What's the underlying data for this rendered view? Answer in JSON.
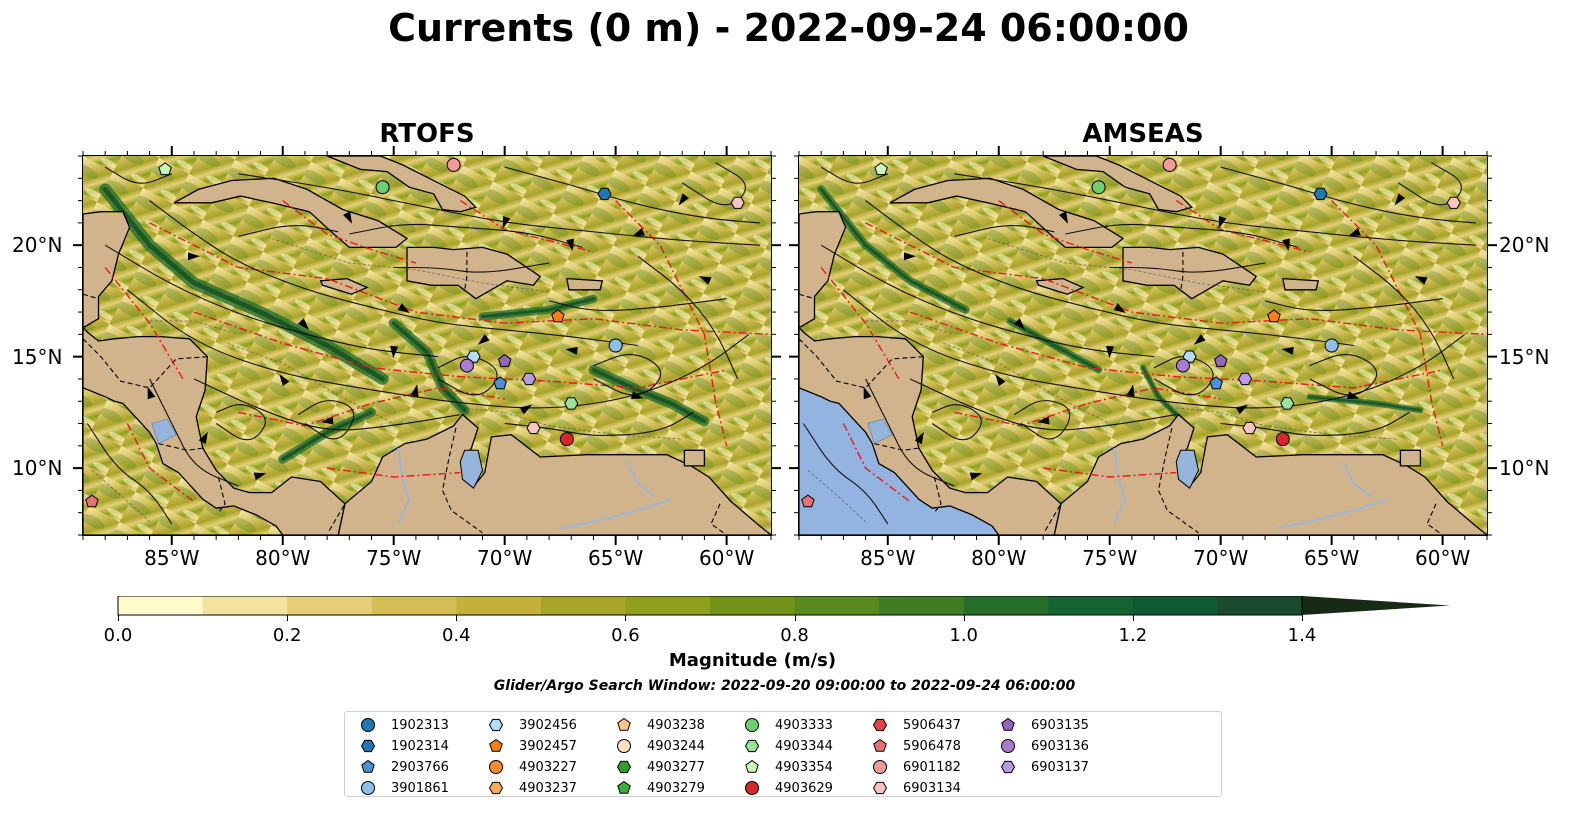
{
  "title": "Currents (0 m) - 2022-09-24 06:00:00",
  "panels": [
    {
      "title": "RTOFS"
    },
    {
      "title": "AMSEAS"
    }
  ],
  "x_ticks": [
    "85°W",
    "80°W",
    "75°W",
    "70°W",
    "65°W",
    "60°W"
  ],
  "y_ticks": [
    "20°N",
    "15°N",
    "10°N"
  ],
  "map_extent": {
    "lon": [
      -89,
      -58
    ],
    "lat": [
      7,
      24
    ]
  },
  "colorbar": {
    "label": "Magnitude (m/s)",
    "ticks": [
      "0.0",
      "0.2",
      "0.4",
      "0.6",
      "0.8",
      "1.0",
      "1.2",
      "1.4"
    ],
    "range": [
      0,
      1.5
    ],
    "extend": "max",
    "colors": [
      "#fffacc",
      "#f2e4a0",
      "#e4cf78",
      "#d6bd55",
      "#c4b13a",
      "#a8a42a",
      "#8fa01d",
      "#72921a",
      "#5a8a1f",
      "#3f7d24",
      "#256f2a",
      "#156330",
      "#0f5a30",
      "#1c4a2c",
      "#1f3a22",
      "#162a16"
    ]
  },
  "subtitle": "Glider/Argo Search Window: 2022-09-20 09:00:00 to 2022-09-24 06:00:00",
  "legend": [
    {
      "id": "1902313",
      "marker": "circle",
      "color": "#1f77b4"
    },
    {
      "id": "1902314",
      "marker": "hexagon",
      "color": "#1f77b4"
    },
    {
      "id": "2903766",
      "marker": "pentagon",
      "color": "#4a90d9"
    },
    {
      "id": "3901861",
      "marker": "circle",
      "color": "#8ec1ea"
    },
    {
      "id": "3902456",
      "marker": "hexagon",
      "color": "#b3dcf5"
    },
    {
      "id": "3902457",
      "marker": "pentagon",
      "color": "#ff7f0e"
    },
    {
      "id": "4903227",
      "marker": "circle",
      "color": "#ff8c2a"
    },
    {
      "id": "4903237",
      "marker": "hexagon",
      "color": "#ffaa5a"
    },
    {
      "id": "4903238",
      "marker": "pentagon",
      "color": "#ffc48a"
    },
    {
      "id": "4903244",
      "marker": "circle",
      "color": "#ffe0c0"
    },
    {
      "id": "4903277",
      "marker": "hexagon",
      "color": "#2ca02c"
    },
    {
      "id": "4903279",
      "marker": "pentagon",
      "color": "#3cb03c"
    },
    {
      "id": "4903333",
      "marker": "circle",
      "color": "#6fcf6f"
    },
    {
      "id": "4903344",
      "marker": "hexagon",
      "color": "#98e498"
    },
    {
      "id": "4903354",
      "marker": "pentagon",
      "color": "#c8f5c0"
    },
    {
      "id": "4903629",
      "marker": "circle",
      "color": "#d62728"
    },
    {
      "id": "5906437",
      "marker": "hexagon",
      "color": "#e04444"
    },
    {
      "id": "5906478",
      "marker": "pentagon",
      "color": "#e87070"
    },
    {
      "id": "6901182",
      "marker": "circle",
      "color": "#f29a9a"
    },
    {
      "id": "6903134",
      "marker": "hexagon",
      "color": "#f8c4c0"
    },
    {
      "id": "6903135",
      "marker": "pentagon",
      "color": "#9467bd"
    },
    {
      "id": "6903136",
      "marker": "circle",
      "color": "#a67dd0"
    },
    {
      "id": "6903137",
      "marker": "hexagon",
      "color": "#b89be0"
    }
  ],
  "floats": [
    {
      "id": "4903354",
      "lon": -85.3,
      "lat": 23.4
    },
    {
      "id": "4903333",
      "lon": -75.5,
      "lat": 22.6
    },
    {
      "id": "6901182",
      "lon": -72.3,
      "lat": 23.6
    },
    {
      "id": "1902314",
      "lon": -65.5,
      "lat": 22.3
    },
    {
      "id": "6903134",
      "lon": -59.5,
      "lat": 21.9
    },
    {
      "id": "3902457",
      "lon": -67.6,
      "lat": 16.8
    },
    {
      "id": "3901861",
      "lon": -65.0,
      "lat": 15.5
    },
    {
      "id": "3902456",
      "lon": -71.4,
      "lat": 15.0
    },
    {
      "id": "6903136",
      "lon": -71.7,
      "lat": 14.6
    },
    {
      "id": "6903135",
      "lon": -70.0,
      "lat": 14.8
    },
    {
      "id": "6903137",
      "lon": -68.9,
      "lat": 14.0
    },
    {
      "id": "2903766",
      "lon": -70.2,
      "lat": 13.8
    },
    {
      "id": "4903344",
      "lon": -67.0,
      "lat": 12.9
    },
    {
      "id": "6903134",
      "lon": -68.7,
      "lat": 11.8
    },
    {
      "id": "4903629",
      "lon": -67.2,
      "lat": 11.3
    },
    {
      "id": "5906478",
      "lon": -88.6,
      "lat": 8.5
    }
  ]
}
